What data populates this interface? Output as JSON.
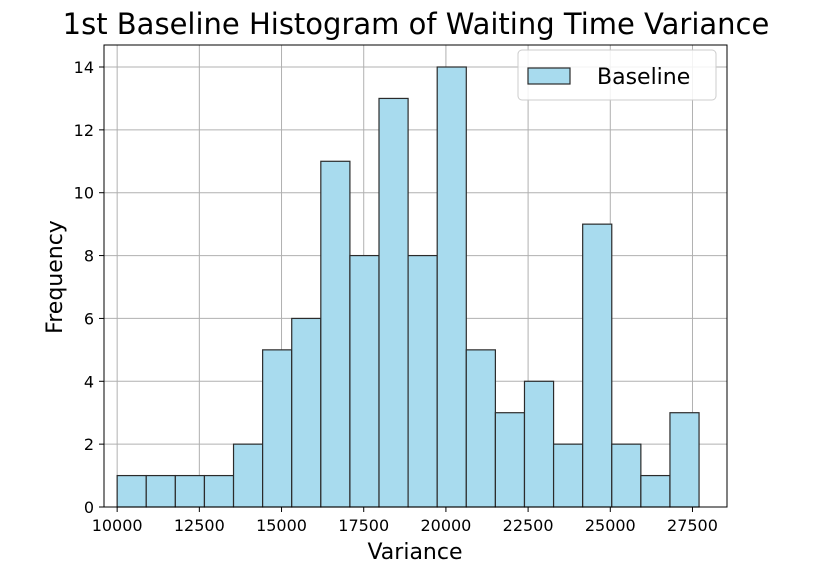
{
  "chart_data": {
    "type": "bar",
    "title": "1st Baseline Histogram of Waiting Time Variance",
    "xlabel": "Variance",
    "ylabel": "Frequency",
    "xlim": [
      9600,
      28550
    ],
    "ylim": [
      0,
      14.7
    ],
    "x_ticks": [
      10000,
      12500,
      15000,
      17500,
      20000,
      22500,
      25000,
      27500
    ],
    "y_ticks": [
      0,
      2,
      4,
      6,
      8,
      10,
      12,
      14
    ],
    "bin_edges": [
      10000,
      10885,
      11770,
      12655,
      13540,
      14425,
      15310,
      16195,
      17080,
      17965,
      18850,
      19735,
      20620,
      21505,
      22390,
      23275,
      24160,
      25045,
      25930,
      26815,
      27700
    ],
    "counts": [
      1,
      1,
      1,
      1,
      2,
      5,
      6,
      11,
      8,
      13,
      8,
      14,
      5,
      3,
      4,
      2,
      9,
      2,
      1,
      3
    ],
    "series": [
      {
        "name": "Baseline",
        "color": "#a8dbee"
      }
    ],
    "grid": true,
    "legend_position": "top-right"
  }
}
